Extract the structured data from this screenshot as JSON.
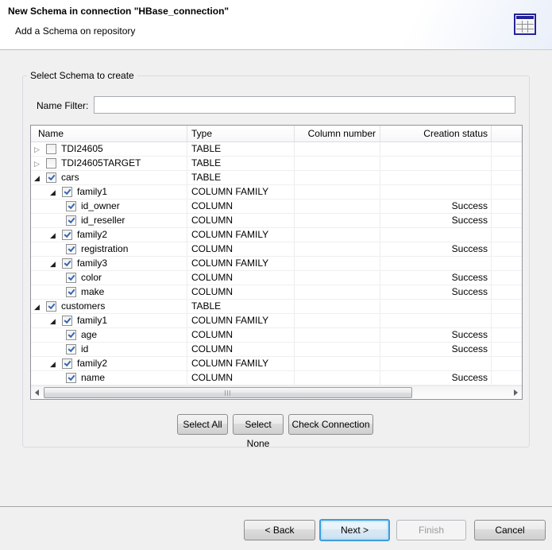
{
  "header": {
    "title": "New Schema in connection \"HBase_connection\"",
    "subtitle": "Add a Schema on repository",
    "icon": "table-grid-icon"
  },
  "group": {
    "label": "Select Schema to create"
  },
  "filter": {
    "label": "Name Filter:",
    "value": "",
    "placeholder": ""
  },
  "table": {
    "columns": [
      "Name",
      "Type",
      "Column number",
      "Creation status"
    ],
    "rows": [
      {
        "name": "TDI24605",
        "type": "TABLE",
        "column_number": "",
        "status": "",
        "level": 0,
        "expanded": false,
        "checked": false
      },
      {
        "name": "TDI24605TARGET",
        "type": "TABLE",
        "column_number": "",
        "status": "",
        "level": 0,
        "expanded": false,
        "checked": false
      },
      {
        "name": "cars",
        "type": "TABLE",
        "column_number": "",
        "status": "",
        "level": 0,
        "expanded": true,
        "checked": true
      },
      {
        "name": "family1",
        "type": "COLUMN FAMILY",
        "column_number": "",
        "status": "",
        "level": 1,
        "expanded": true,
        "checked": true
      },
      {
        "name": "id_owner",
        "type": "COLUMN",
        "column_number": "",
        "status": "Success",
        "level": 2,
        "expanded": null,
        "checked": true
      },
      {
        "name": "id_reseller",
        "type": "COLUMN",
        "column_number": "",
        "status": "Success",
        "level": 2,
        "expanded": null,
        "checked": true
      },
      {
        "name": "family2",
        "type": "COLUMN FAMILY",
        "column_number": "",
        "status": "",
        "level": 1,
        "expanded": true,
        "checked": true
      },
      {
        "name": "registration",
        "type": "COLUMN",
        "column_number": "",
        "status": "Success",
        "level": 2,
        "expanded": null,
        "checked": true
      },
      {
        "name": "family3",
        "type": "COLUMN FAMILY",
        "column_number": "",
        "status": "",
        "level": 1,
        "expanded": true,
        "checked": true
      },
      {
        "name": "color",
        "type": "COLUMN",
        "column_number": "",
        "status": "Success",
        "level": 2,
        "expanded": null,
        "checked": true
      },
      {
        "name": "make",
        "type": "COLUMN",
        "column_number": "",
        "status": "Success",
        "level": 2,
        "expanded": null,
        "checked": true
      },
      {
        "name": "customers",
        "type": "TABLE",
        "column_number": "",
        "status": "",
        "level": 0,
        "expanded": true,
        "checked": true
      },
      {
        "name": "family1",
        "type": "COLUMN FAMILY",
        "column_number": "",
        "status": "",
        "level": 1,
        "expanded": true,
        "checked": true
      },
      {
        "name": "age",
        "type": "COLUMN",
        "column_number": "",
        "status": "Success",
        "level": 2,
        "expanded": null,
        "checked": true
      },
      {
        "name": "id",
        "type": "COLUMN",
        "column_number": "",
        "status": "Success",
        "level": 2,
        "expanded": null,
        "checked": true
      },
      {
        "name": "family2",
        "type": "COLUMN FAMILY",
        "column_number": "",
        "status": "",
        "level": 1,
        "expanded": true,
        "checked": true
      },
      {
        "name": "name",
        "type": "COLUMN",
        "column_number": "",
        "status": "Success",
        "level": 2,
        "expanded": null,
        "checked": true
      }
    ]
  },
  "actions": {
    "select_all": "Select All",
    "select_none": "Select None",
    "check_connection": "Check Connection"
  },
  "wizard_buttons": {
    "back": "< Back",
    "next": "Next >",
    "finish": "Finish",
    "cancel": "Cancel"
  },
  "colors": {
    "accent_navy": "#23239b",
    "focus_blue": "#3c9ede",
    "checkmark_blue": "#3767b1",
    "dialog_background": "#f0f0f0"
  }
}
